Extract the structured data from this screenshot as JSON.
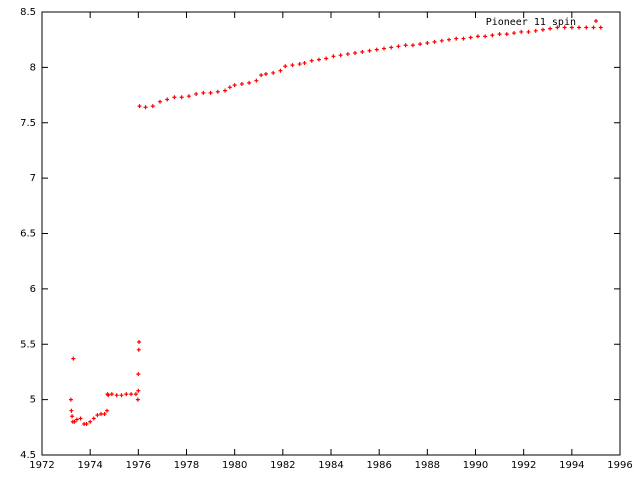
{
  "chart_data": {
    "type": "scatter",
    "xlim": [
      1972,
      1996
    ],
    "xticks": [
      1972,
      1974,
      1976,
      1978,
      1980,
      1982,
      1984,
      1986,
      1988,
      1990,
      1992,
      1994,
      1996
    ],
    "ylim": [
      4.5,
      8.5
    ],
    "yticks": [
      4.5,
      5,
      5.5,
      6,
      6.5,
      7,
      7.5,
      8,
      8.5
    ],
    "legend": "top-right",
    "series": [
      {
        "name": "Pioneer 11 spin",
        "color": "#ff0000",
        "x": [
          1973.2,
          1973.22,
          1973.25,
          1973.28,
          1973.3,
          1973.35,
          1973.45,
          1973.6,
          1973.75,
          1973.85,
          1974.0,
          1974.15,
          1974.3,
          1974.45,
          1974.6,
          1974.7,
          1974.72,
          1974.75,
          1974.9,
          1975.1,
          1975.3,
          1975.5,
          1975.7,
          1975.9,
          1975.98,
          1976.0,
          1976.0,
          1976.02,
          1976.03,
          1976.05,
          1976.3,
          1976.6,
          1976.9,
          1977.2,
          1977.5,
          1977.8,
          1978.1,
          1978.4,
          1978.7,
          1979.0,
          1979.3,
          1979.6,
          1979.8,
          1980.0,
          1980.3,
          1980.6,
          1980.9,
          1981.1,
          1981.3,
          1981.6,
          1981.9,
          1982.1,
          1982.4,
          1982.7,
          1982.9,
          1983.2,
          1983.5,
          1983.8,
          1984.1,
          1984.4,
          1984.7,
          1985.0,
          1985.3,
          1985.6,
          1985.9,
          1986.2,
          1986.5,
          1986.8,
          1987.1,
          1987.4,
          1987.7,
          1988.0,
          1988.3,
          1988.6,
          1988.9,
          1989.2,
          1989.5,
          1989.8,
          1990.1,
          1990.4,
          1990.7,
          1991.0,
          1991.3,
          1991.6,
          1991.9,
          1992.2,
          1992.5,
          1992.8,
          1993.1,
          1993.4,
          1993.7,
          1994.0,
          1994.3,
          1994.6,
          1994.9,
          1995.2
        ],
        "values": [
          5.0,
          4.9,
          4.85,
          4.8,
          5.37,
          4.8,
          4.82,
          4.83,
          4.78,
          4.78,
          4.8,
          4.83,
          4.86,
          4.87,
          4.87,
          4.9,
          5.05,
          5.04,
          5.05,
          5.04,
          5.04,
          5.05,
          5.05,
          5.05,
          5.0,
          5.08,
          5.23,
          5.45,
          5.52,
          7.65,
          7.64,
          7.65,
          7.69,
          7.71,
          7.73,
          7.73,
          7.74,
          7.76,
          7.77,
          7.77,
          7.78,
          7.79,
          7.82,
          7.84,
          7.85,
          7.86,
          7.88,
          7.93,
          7.94,
          7.95,
          7.97,
          8.01,
          8.02,
          8.03,
          8.04,
          8.06,
          8.07,
          8.08,
          8.1,
          8.11,
          8.12,
          8.13,
          8.14,
          8.15,
          8.16,
          8.17,
          8.18,
          8.19,
          8.2,
          8.2,
          8.21,
          8.22,
          8.23,
          8.24,
          8.25,
          8.26,
          8.26,
          8.27,
          8.28,
          8.28,
          8.29,
          8.3,
          8.3,
          8.31,
          8.32,
          8.32,
          8.33,
          8.34,
          8.35,
          8.36,
          8.36,
          8.36,
          8.36,
          8.36,
          8.36,
          8.36
        ]
      }
    ]
  }
}
